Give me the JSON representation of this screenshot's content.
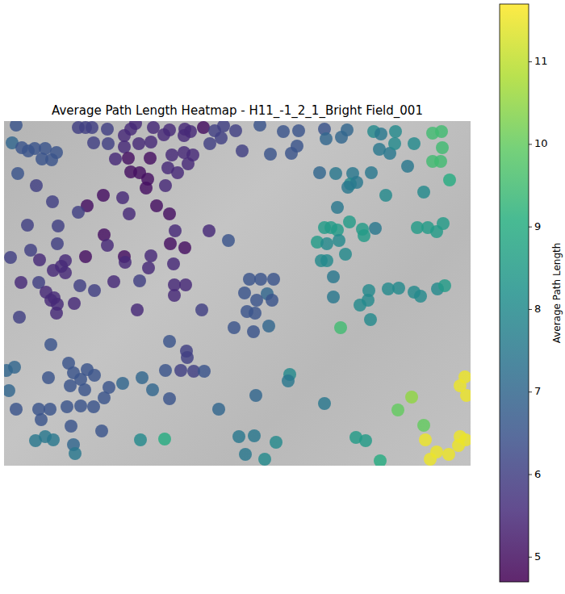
{
  "chart_data": {
    "type": "scatter",
    "title": "Average Path Length Heatmap - H11_-1_2_1_Bright Field_001",
    "tick_labels": false,
    "xlim": [
      0,
      578
    ],
    "ylim": [
      0,
      427
    ],
    "x": [
      15,
      92,
      101,
      109,
      128,
      163,
      157,
      185,
      205,
      224,
      231,
      247,
      261,
      272,
      287,
      317,
      346,
      365,
      397,
      425,
      458,
      467,
      485,
      531,
      542,
      10,
      22,
      30,
      38,
      51,
      65,
      111,
      129,
      149,
      149,
      167,
      182,
      198,
      223,
      255,
      269,
      295,
      330,
      356,
      363,
      399,
      418,
      465,
      478,
      484,
      508,
      543,
      47,
      59,
      138,
      154,
      181,
      208,
      223,
      234,
      500,
      531,
      541,
      17,
      157,
      168,
      178,
      203,
      215,
      228,
      391,
      411,
      432,
      455,
      429,
      437,
      426,
      176,
      200,
      40,
      552,
      520,
      473,
      123,
      147,
      60,
      103,
      189,
      413,
      92,
      155,
      205,
      29,
      67,
      397,
      405,
      428,
      413,
      444,
      446,
      460,
      512,
      525,
      536,
      544,
      124,
      212,
      254,
      278,
      388,
      400,
      415,
      66,
      128,
      206,
      224,
      8,
      33,
      101,
      149,
      182,
      44,
      76,
      150,
      179,
      210,
      393,
      400,
      423,
      71,
      76,
      61,
      21,
      43,
      94,
      112,
      211,
      225,
      136,
      168,
      304,
      318,
      334,
      408,
      52,
      62,
      58,
      66,
      87,
      211,
      326,
      298,
      313,
      332,
      408,
      452,
      476,
      489,
      508,
      516,
      537,
      546,
      19,
      65,
      165,
      245,
      301,
      441,
      451,
      454,
      285,
      309,
      328,
      311,
      417,
      58,
      205,
      226,
      227,
      219,
      235,
      248,
      80,
      86,
      103,
      95,
      112,
      3,
      13,
      354,
      352,
      130,
      147,
      171,
      184,
      200,
      82,
      100,
      55,
      6,
      124,
      205,
      312,
      43,
      57,
      78,
      95,
      111,
      15,
      266,
      46,
      83,
      121,
      397,
      505,
      488,
      571,
      565,
      573,
      520,
      39,
      51,
      61,
      169,
      199,
      86,
      88,
      291,
      310,
      337,
      299,
      323,
      436,
      448,
      522,
      536,
      528,
      551,
      565,
      572,
      563,
      466
    ],
    "y": [
      5,
      8,
      8,
      8,
      10,
      3,
      10,
      8,
      11,
      10,
      13,
      8,
      12,
      6,
      12,
      5,
      13,
      12,
      10,
      11,
      13,
      16,
      13,
      15,
      13,
      27,
      33,
      37,
      34,
      34,
      39,
      27,
      28,
      18,
      32,
      28,
      26,
      17,
      18,
      28,
      21,
      37,
      41,
      40,
      31,
      22,
      20,
      35,
      40,
      28,
      28,
      33,
      47,
      48,
      47,
      46,
      46,
      42,
      39,
      42,
      56,
      50,
      50,
      65,
      63,
      64,
      72,
      58,
      64,
      53,
      64,
      65,
      65,
      64,
      78,
      76,
      82,
      83,
      80,
      80,
      73,
      88,
      92,
      92,
      95,
      100,
      105,
      105,
      107,
      113,
      115,
      115,
      129,
      130,
      132,
      132,
      125,
      135,
      134,
      142,
      133,
      132,
      132,
      137,
      127,
      141,
      136,
      136,
      148,
      150,
      152,
      148,
      152,
      154,
      152,
      157,
      169,
      160,
      168,
      168,
      167,
      172,
      173,
      175,
      182,
      177,
      173,
      173,
      165,
      180,
      188,
      185,
      200,
      200,
      204,
      210,
      203,
      203,
      199,
      198,
      196,
      196,
      196,
      193,
      212,
      219,
      222,
      227,
      226,
      216,
      214,
      213,
      222,
      222,
      218,
      210,
      208,
      207,
      212,
      217,
      208,
      204,
      243,
      238,
      234,
      234,
      236,
      228,
      222,
      246,
      256,
      261,
      254,
      238,
      256,
      277,
      273,
      285,
      293,
      309,
      310,
      310,
      300,
      312,
      308,
      320,
      315,
      309,
      305,
      314,
      322,
      330,
      325,
      318,
      333,
      309,
      328,
      333,
      318,
      334,
      343,
      344,
      340,
      357,
      357,
      354,
      353,
      354,
      357,
      357,
      370,
      378,
      384,
      350,
      342,
      358,
      317,
      328,
      340,
      377,
      396,
      391,
      395,
      395,
      394,
      401,
      412,
      391,
      390,
      398,
      413,
      419,
      392,
      396,
      395,
      410,
      419,
      413,
      391,
      395,
      402,
      421
    ],
    "values": [
      6.5,
      6,
      6,
      6,
      6,
      5.5,
      5.5,
      5.5,
      5.5,
      5.5,
      5.5,
      5,
      6,
      6,
      6,
      6.5,
      6.5,
      6.5,
      6.5,
      7,
      8,
      7.5,
      8,
      9.5,
      9.5,
      7,
      6.5,
      6.5,
      6.5,
      6.5,
      6.5,
      6,
      6,
      5.5,
      5.5,
      5.5,
      5.5,
      5.5,
      5.5,
      6,
      6,
      6,
      6.5,
      6.5,
      6.5,
      7,
      7,
      7.5,
      7.5,
      8,
      8,
      9.5,
      6.5,
      6.5,
      5.5,
      5,
      5,
      5.5,
      5.5,
      5.5,
      7.5,
      9.5,
      9.5,
      6.5,
      5,
      5,
      5,
      5.5,
      5.5,
      5.5,
      7,
      7.5,
      7.5,
      7.5,
      8,
      7.5,
      7.5,
      5,
      5.5,
      6,
      9,
      8,
      8,
      5,
      5.5,
      6,
      5,
      5,
      7.5,
      6,
      5.5,
      5,
      6,
      6,
      8.5,
      8.5,
      8.5,
      8.5,
      8.5,
      8.5,
      7.5,
      8.5,
      8.5,
      8.5,
      8.5,
      5,
      5.5,
      5.5,
      6.5,
      8.5,
      8,
      8,
      6,
      5.5,
      5,
      5,
      6,
      6,
      5,
      5,
      5.5,
      5.5,
      5.5,
      5.5,
      5.5,
      5.5,
      8,
      8,
      8,
      5.5,
      5.5,
      5.5,
      5.5,
      6,
      6,
      6,
      5.5,
      5.5,
      5.5,
      6,
      6.5,
      6.5,
      6.5,
      7.5,
      5.5,
      5.5,
      5.5,
      5.5,
      5.5,
      5.5,
      7,
      6.5,
      6.5,
      6.5,
      7.5,
      8,
      8,
      8,
      8,
      8,
      8,
      8.5,
      6,
      5.5,
      5.5,
      6,
      6.5,
      8,
      8,
      8,
      6.5,
      6.5,
      7,
      6.5,
      9.5,
      6.5,
      6.5,
      6,
      6,
      6,
      6,
      6.5,
      6.5,
      6.5,
      6.5,
      6.5,
      6.5,
      7,
      7,
      8,
      7.5,
      6.5,
      7,
      7,
      7,
      6.5,
      6.5,
      6.5,
      6.5,
      7,
      6.5,
      6.5,
      7,
      6.5,
      6.5,
      6.5,
      6.5,
      6.5,
      6.5,
      7,
      6.5,
      6.5,
      6.5,
      7.5,
      10.5,
      10,
      11.5,
      11.5,
      11.5,
      10,
      7.5,
      7.5,
      7.5,
      8,
      9,
      7,
      7.5,
      7.5,
      7.5,
      8,
      7.5,
      8,
      8.5,
      8.5,
      11.5,
      11.5,
      11.5,
      11.5,
      11.5,
      11.5,
      11.5,
      9
    ],
    "colorbar": {
      "label": "Average Path Length",
      "range": [
        4.7,
        11.7
      ],
      "ticks": [
        5,
        6,
        7,
        8,
        9,
        10,
        11
      ]
    }
  }
}
